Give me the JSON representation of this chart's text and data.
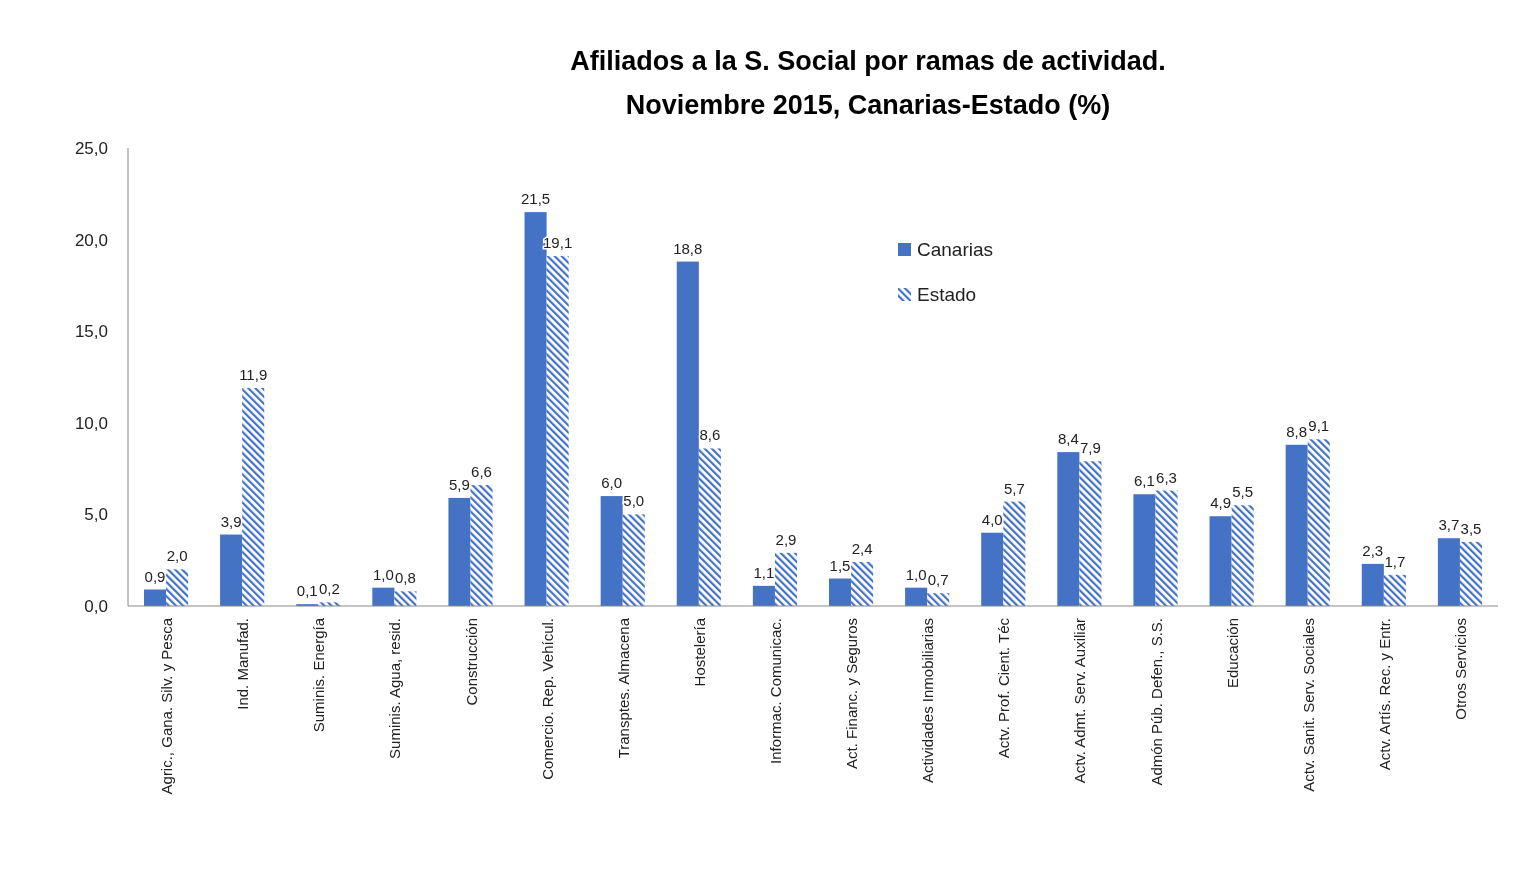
{
  "chart_data": {
    "type": "bar",
    "title": "Afiliados a la S. Social por ramas de actividad.",
    "subtitle": "Noviembre 2015, Canarias-Estado (%)",
    "categories": [
      "Agric., Gana. Silv. y Pesca",
      "Ind. Manufad.",
      "Suminis.  Energía",
      "Suminis. Agua, resid.",
      "Construcción",
      "Comercio. Rep. Vehícul.",
      "Transptes. Almacena",
      "Hostelería",
      "Informac. Comunicac.",
      "Act. Financ. y Seguros",
      "Actividades Inmobiliarias",
      "Actv. Prof. Cient. Téc",
      "Actv. Admt. Serv. Auxiliar",
      "Admón Púb. Defen., S.S.",
      "Educación",
      "Actv. Sanit. Serv. Sociales",
      "Actv. Artís. Rec. y Entr.",
      "Otros Servicios"
    ],
    "series": [
      {
        "name": "Canarias",
        "color": "#4472c4",
        "values": [
          0.9,
          3.9,
          0.1,
          1.0,
          5.9,
          21.5,
          6.0,
          18.8,
          1.1,
          1.5,
          1.0,
          4.0,
          8.4,
          6.1,
          4.9,
          8.8,
          2.3,
          3.7
        ],
        "value_labels": [
          "0,9",
          "3,9",
          "0,1",
          "1,0",
          "5,9",
          "21,5",
          "6,0",
          "18,8",
          "1,1",
          "1,5",
          "1,0",
          "4,0",
          "8,4",
          "6,1",
          "4,9",
          "8,8",
          "2,3",
          "3,7"
        ]
      },
      {
        "name": "Estado",
        "color": "#4472c4",
        "values": [
          2.0,
          11.9,
          0.2,
          0.8,
          6.6,
          19.1,
          5.0,
          8.6,
          2.9,
          2.4,
          0.7,
          5.7,
          7.9,
          6.3,
          5.5,
          9.1,
          1.7,
          3.5
        ],
        "value_labels": [
          "2,0",
          "11,9",
          "0,2",
          "0,8",
          "6,6",
          "19,1",
          "5,0",
          "8,6",
          "2,9",
          "2,4",
          "0,7",
          "5,7",
          "7,9",
          "6,3",
          "5,5",
          "9,1",
          "1,7",
          "3,5"
        ]
      }
    ],
    "ylim": [
      0,
      25
    ],
    "yticks": [
      {
        "value": 0,
        "label": "0,0"
      },
      {
        "value": 5,
        "label": "5,0"
      },
      {
        "value": 10,
        "label": "10,0"
      },
      {
        "value": 15,
        "label": "15,0"
      },
      {
        "value": 20,
        "label": "20,0"
      },
      {
        "value": 25,
        "label": "25,0"
      }
    ],
    "legend": "top right",
    "grid": false
  }
}
